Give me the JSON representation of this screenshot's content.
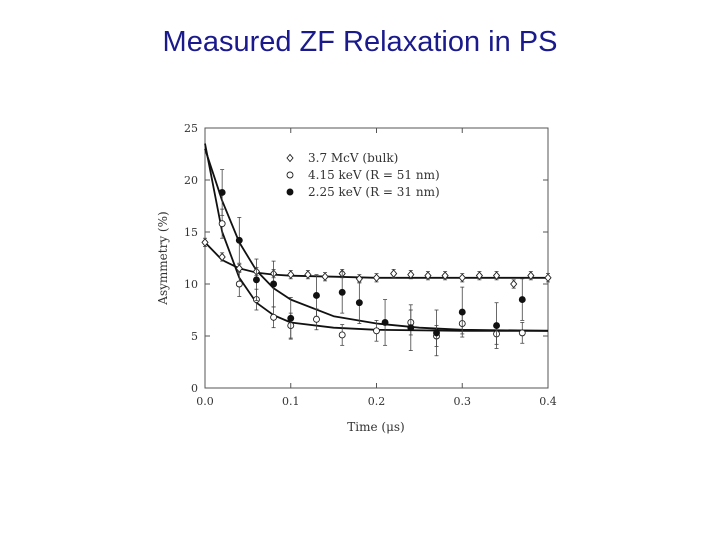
{
  "slide": {
    "title": "Measured ZF Relaxation in PS"
  },
  "chart_data": {
    "type": "scatter",
    "title": "",
    "xlabel": "Time (μs)",
    "ylabel": "Asymmetry (%)",
    "xlim": [
      0.0,
      0.4
    ],
    "ylim": [
      0,
      25
    ],
    "xticks": [
      "0.0",
      "0.1",
      "0.2",
      "0.3",
      "0.4"
    ],
    "yticks": [
      "0",
      "5",
      "10",
      "15",
      "20",
      "25"
    ],
    "grid": false,
    "legend_position": "top-right (inside plot)",
    "series": [
      {
        "name": "3.7 McV (bulk)",
        "marker": "open-diamond",
        "x": [
          0.0,
          0.02,
          0.04,
          0.06,
          0.08,
          0.1,
          0.12,
          0.14,
          0.16,
          0.18,
          0.2,
          0.22,
          0.24,
          0.26,
          0.28,
          0.3,
          0.32,
          0.34,
          0.36,
          0.38,
          0.4
        ],
        "y": [
          14.0,
          12.6,
          11.5,
          11.2,
          11.0,
          10.9,
          10.9,
          10.7,
          11.0,
          10.5,
          10.6,
          11.0,
          10.9,
          10.8,
          10.8,
          10.6,
          10.8,
          10.8,
          10.0,
          10.8,
          10.6
        ],
        "yerr": [
          0.4,
          0.4,
          0.4,
          0.4,
          0.4,
          0.4,
          0.4,
          0.4,
          0.4,
          0.4,
          0.4,
          0.4,
          0.4,
          0.4,
          0.4,
          0.4,
          0.4,
          0.4,
          0.4,
          0.4,
          0.4
        ]
      },
      {
        "name": "4.15 keV (R = 51 nm)",
        "marker": "open-circle",
        "x": [
          0.02,
          0.04,
          0.06,
          0.08,
          0.1,
          0.13,
          0.16,
          0.2,
          0.24,
          0.27,
          0.3,
          0.34,
          0.37
        ],
        "y": [
          15.8,
          10.0,
          8.5,
          6.8,
          6.0,
          6.6,
          5.1,
          5.5,
          6.3,
          5.0,
          6.2,
          5.2,
          5.3
        ],
        "yerr": [
          1.4,
          1.2,
          1.0,
          1.0,
          1.2,
          1.0,
          1.0,
          1.0,
          1.2,
          1.0,
          1.0,
          1.0,
          1.0
        ]
      },
      {
        "name": "2.25 keV (R = 31 nm)",
        "marker": "filled-circle",
        "x": [
          0.02,
          0.04,
          0.06,
          0.08,
          0.1,
          0.13,
          0.16,
          0.18,
          0.21,
          0.24,
          0.27,
          0.3,
          0.34,
          0.37
        ],
        "y": [
          18.8,
          14.2,
          10.4,
          10.0,
          6.7,
          8.9,
          9.2,
          8.2,
          6.3,
          5.8,
          5.3,
          7.3,
          6.0,
          8.5
        ],
        "yerr": [
          2.2,
          2.2,
          2.0,
          2.2,
          2.0,
          2.0,
          2.0,
          2.0,
          2.2,
          2.2,
          2.2,
          2.4,
          2.2,
          2.0
        ]
      }
    ],
    "fits": [
      {
        "series": "3.7 McV (bulk)",
        "x": [
          0.0,
          0.02,
          0.04,
          0.06,
          0.08,
          0.1,
          0.15,
          0.2,
          0.3,
          0.4
        ],
        "y": [
          14.0,
          12.3,
          11.5,
          11.1,
          10.9,
          10.8,
          10.7,
          10.6,
          10.6,
          10.6
        ]
      },
      {
        "series": "4.15 keV (R = 51 nm)",
        "x": [
          0.0,
          0.02,
          0.04,
          0.06,
          0.08,
          0.1,
          0.15,
          0.2,
          0.3,
          0.4
        ],
        "y": [
          23.5,
          15.0,
          10.6,
          8.2,
          7.0,
          6.3,
          5.8,
          5.6,
          5.5,
          5.5
        ]
      },
      {
        "series": "2.25 keV (R = 31 nm)",
        "x": [
          0.0,
          0.02,
          0.04,
          0.06,
          0.08,
          0.1,
          0.15,
          0.2,
          0.25,
          0.3,
          0.4
        ],
        "y": [
          23.0,
          18.0,
          14.0,
          11.3,
          9.6,
          8.5,
          6.9,
          6.2,
          5.8,
          5.6,
          5.5
        ]
      }
    ]
  }
}
